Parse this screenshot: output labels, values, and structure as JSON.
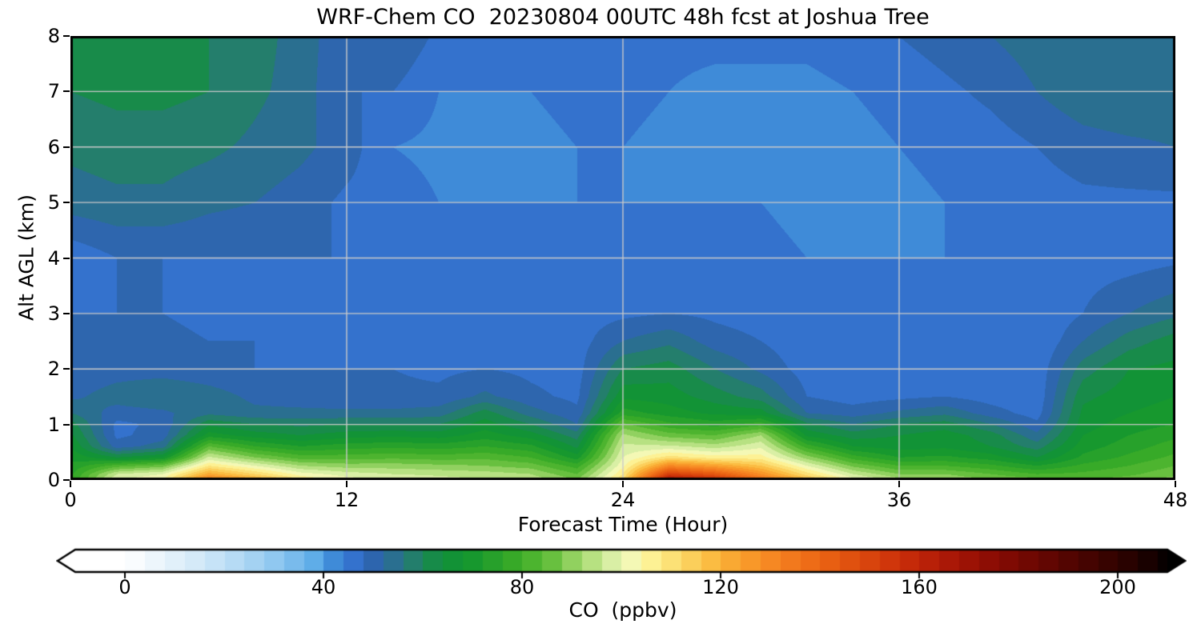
{
  "figure": {
    "background": "#ffffff",
    "text_color": "#000000"
  },
  "chart_data": {
    "type": "heatmap",
    "title": "WRF-Chem CO  20230804 00UTC 48h fcst at Joshua Tree",
    "xlabel": "Forecast Time (Hour)",
    "ylabel": "Alt AGL (km)",
    "xlim": [
      0,
      48
    ],
    "ylim": [
      0,
      8
    ],
    "x_ticks": [
      0,
      12,
      24,
      36,
      48
    ],
    "y_ticks": [
      0,
      1,
      2,
      3,
      4,
      5,
      6,
      7,
      8
    ],
    "grid_on": true,
    "grid_color": "#c9c9c9",
    "border_color": "#000000",
    "colorbar": {
      "label": "CO  (ppbv)",
      "ticks": [
        0,
        40,
        80,
        120,
        160,
        200
      ],
      "vmin": -10,
      "vmax": 210,
      "band_step": 4,
      "extend": "both",
      "stops": [
        [
          -12,
          "#ffffff"
        ],
        [
          0,
          "#ffffff"
        ],
        [
          8,
          "#e8f3fb"
        ],
        [
          16,
          "#cfe7f8"
        ],
        [
          24,
          "#aed7f4"
        ],
        [
          32,
          "#86c3ef"
        ],
        [
          38,
          "#5fade8"
        ],
        [
          42,
          "#3f8bd8"
        ],
        [
          46,
          "#3472cd"
        ],
        [
          48,
          "#2f63ba"
        ],
        [
          52,
          "#2c68a2"
        ],
        [
          56,
          "#28767f"
        ],
        [
          60,
          "#1f8659"
        ],
        [
          64,
          "#10903a"
        ],
        [
          70,
          "#17982e"
        ],
        [
          80,
          "#3fae27"
        ],
        [
          86,
          "#68c03f"
        ],
        [
          92,
          "#a6da70"
        ],
        [
          98,
          "#d9efa5"
        ],
        [
          102,
          "#f4f8b5"
        ],
        [
          106,
          "#fdf194"
        ],
        [
          112,
          "#fcd968"
        ],
        [
          118,
          "#fbbc42"
        ],
        [
          124,
          "#f9a02c"
        ],
        [
          132,
          "#f58020"
        ],
        [
          140,
          "#ec6614"
        ],
        [
          148,
          "#dd4b0e"
        ],
        [
          156,
          "#cc300a"
        ],
        [
          164,
          "#b21b08"
        ],
        [
          172,
          "#950f05"
        ],
        [
          180,
          "#780903"
        ],
        [
          188,
          "#5b0602"
        ],
        [
          196,
          "#3e0401"
        ],
        [
          204,
          "#220200"
        ],
        [
          212,
          "#000000"
        ]
      ]
    },
    "grid": {
      "hours": [
        0,
        2,
        4,
        6,
        8,
        10,
        12,
        14,
        16,
        18,
        20,
        22,
        24,
        26,
        28,
        30,
        32,
        34,
        36,
        38,
        40,
        42,
        44,
        46,
        48
      ],
      "alts_km": [
        0,
        0.1,
        0.25,
        0.4,
        0.6,
        0.8,
        1.0,
        1.2,
        1.5,
        2.0,
        2.5,
        3.0,
        4.0,
        5.0,
        6.0,
        7.0,
        8.0
      ],
      "co_ppbv": [
        [
          76,
          100,
          104,
          134,
          122,
          108,
          102,
          100,
          98,
          96,
          95,
          88,
          112,
          168,
          158,
          138,
          118,
          102,
          94,
          92,
          88,
          86,
          84,
          86,
          90
        ],
        [
          75,
          96,
          100,
          122,
          112,
          102,
          98,
          96,
          95,
          94,
          92,
          84,
          108,
          152,
          144,
          128,
          110,
          96,
          88,
          88,
          84,
          80,
          81,
          83,
          87
        ],
        [
          73,
          82,
          86,
          108,
          100,
          92,
          90,
          90,
          89,
          88,
          86,
          78,
          103,
          130,
          124,
          116,
          100,
          87,
          80,
          80,
          77,
          72,
          77,
          80,
          84
        ],
        [
          71,
          64,
          68,
          97,
          88,
          82,
          82,
          83,
          82,
          83,
          80,
          70,
          100,
          110,
          106,
          106,
          90,
          78,
          72,
          73,
          70,
          64,
          73,
          77,
          81
        ],
        [
          68,
          50,
          54,
          84,
          76,
          72,
          74,
          75,
          74,
          76,
          73,
          63,
          97,
          97,
          94,
          99,
          78,
          68,
          66,
          67,
          64,
          58,
          70,
          74,
          78
        ],
        [
          65,
          47,
          50,
          70,
          66,
          64,
          66,
          67,
          66,
          70,
          66,
          58,
          93,
          86,
          84,
          92,
          67,
          62,
          64,
          66,
          62,
          53,
          68,
          72,
          75
        ],
        [
          62,
          47,
          49,
          63,
          60,
          59,
          60,
          60,
          60,
          66,
          60,
          52,
          85,
          77,
          74,
          78,
          61,
          56,
          60,
          62,
          56,
          49,
          66,
          70,
          72
        ],
        [
          56,
          50,
          51,
          55,
          53,
          53,
          53,
          53,
          54,
          62,
          54,
          49,
          74,
          70,
          67,
          66,
          52,
          50,
          53,
          55,
          50,
          46,
          65,
          68,
          70
        ],
        [
          51,
          54,
          56,
          54,
          51,
          50,
          49,
          49,
          49,
          53,
          49,
          47,
          67,
          66,
          62,
          58,
          48,
          46,
          47,
          48,
          46,
          45,
          63,
          66,
          68
        ],
        [
          49,
          50,
          50,
          49,
          48,
          48,
          48,
          48,
          47,
          48,
          47,
          46,
          60,
          62,
          56,
          51,
          46,
          45,
          45,
          45,
          45,
          45,
          58,
          64,
          65
        ],
        [
          48,
          49,
          49,
          48,
          48,
          47,
          47,
          47,
          47,
          47,
          46,
          46,
          52,
          55,
          50,
          48,
          45,
          45,
          45,
          45,
          45,
          44,
          52,
          58,
          62
        ],
        [
          48,
          48,
          48,
          47,
          47,
          47,
          47,
          47,
          46,
          46,
          46,
          46,
          47,
          48,
          47,
          46,
          45,
          45,
          44,
          44,
          44,
          44,
          48,
          52,
          55
        ],
        [
          45,
          48,
          48,
          48,
          48,
          48,
          48,
          47,
          47,
          47,
          46,
          46,
          46,
          46,
          45,
          45,
          44,
          44,
          44,
          44,
          44,
          45,
          46,
          46,
          47
        ],
        [
          54,
          55,
          55,
          53,
          52,
          50,
          47,
          46,
          44,
          44,
          44,
          44,
          44,
          44,
          44,
          44,
          43,
          43,
          43,
          44,
          45,
          46,
          47,
          47,
          47
        ],
        [
          57,
          58,
          58,
          57,
          55,
          53,
          50,
          44,
          43,
          43,
          43,
          44,
          44,
          43,
          43,
          43,
          43,
          43,
          44,
          45,
          46,
          48,
          50,
          51,
          52
        ],
        [
          60,
          61,
          61,
          60,
          57,
          54,
          48,
          48,
          44,
          44,
          44,
          45,
          45,
          44,
          43,
          43,
          43,
          44,
          45,
          47,
          49,
          52,
          55,
          56,
          55
        ],
        [
          61,
          61,
          61,
          60,
          58,
          54,
          49,
          52,
          47,
          46,
          46,
          46,
          46,
          45,
          45,
          45,
          45,
          46,
          48,
          50,
          52,
          54,
          54,
          53,
          52
        ]
      ]
    }
  }
}
